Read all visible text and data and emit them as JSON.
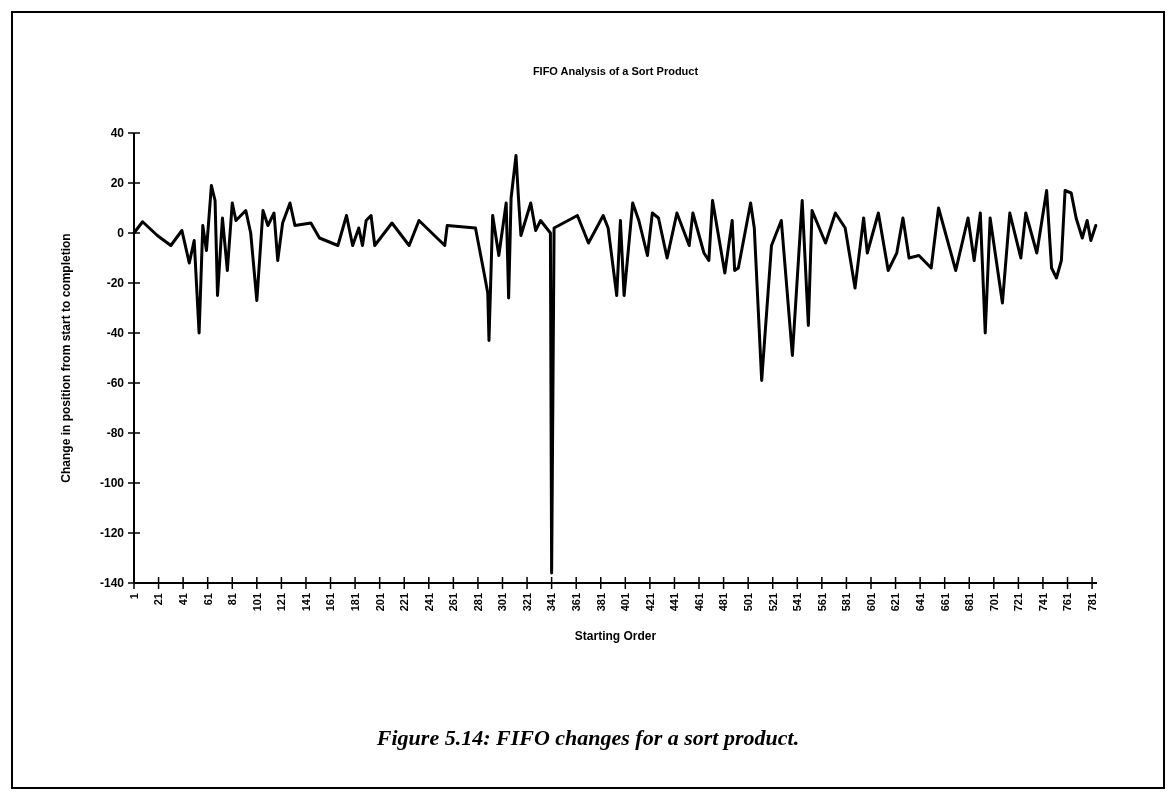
{
  "chart_data": {
    "type": "line",
    "title": "FIFO Analysis of a Sort Product",
    "xlabel": "Starting Order",
    "ylabel": "Change in position from start to completion",
    "annotations": [
      "Figure 5.14: FIFO changes for a sort product."
    ],
    "x": [
      1,
      8,
      20,
      31,
      40,
      46,
      50,
      54,
      57,
      60,
      64,
      67,
      69,
      73,
      77,
      81,
      84,
      92,
      96,
      101,
      106,
      110,
      115,
      118,
      122,
      128,
      132,
      145,
      152,
      167,
      174,
      179,
      184,
      187,
      190,
      194,
      197,
      211,
      225,
      233,
      254,
      256,
      279,
      286,
      289,
      290,
      293,
      298,
      304,
      306,
      308,
      312,
      314,
      316,
      324,
      328,
      332,
      340,
      341,
      343,
      362,
      371,
      383,
      387,
      394,
      397,
      400,
      407,
      412,
      419,
      423,
      428,
      435,
      443,
      453,
      456,
      465,
      469,
      472,
      482,
      488,
      490,
      493,
      503,
      506,
      512,
      520,
      528,
      537,
      545,
      550,
      553,
      564,
      572,
      580,
      588,
      595,
      598,
      607,
      615,
      622,
      627,
      632,
      640,
      650,
      656,
      670,
      680,
      685,
      690,
      694,
      698,
      708,
      714,
      723,
      727,
      736,
      744,
      748,
      752,
      756,
      759,
      764,
      768,
      773,
      777,
      780,
      784
    ],
    "series": [
      {
        "color": "#000000",
        "values": [
          0,
          4.5,
          -1,
          -5,
          1,
          -12,
          -3,
          -40,
          3,
          -7,
          19,
          13,
          -25,
          6,
          -15,
          12,
          5,
          9,
          0,
          -27,
          9,
          3,
          8,
          -11,
          4,
          12,
          3,
          4,
          -2,
          -5,
          7,
          -5,
          2,
          -5,
          5,
          7,
          -5,
          4,
          -5,
          5,
          -5,
          3,
          2,
          -16,
          -24,
          -43,
          7,
          -9,
          12,
          -26,
          14,
          31,
          14,
          -1,
          12,
          1,
          5,
          0,
          -136,
          2,
          7,
          -4,
          7,
          2,
          -25,
          5,
          -25,
          12,
          5,
          -9,
          8,
          6,
          -10,
          8,
          -5,
          8,
          -8,
          -11,
          13,
          -16,
          5,
          -15,
          -14,
          12,
          2,
          -59,
          -5,
          5,
          -49,
          13,
          -37,
          9,
          -4,
          8,
          2,
          -22,
          6,
          -8,
          8,
          -15,
          -8,
          6,
          -10,
          -9,
          -14,
          10,
          -15,
          6,
          -11,
          8,
          -40,
          6,
          -28,
          8,
          -10,
          8,
          -8,
          17,
          -14,
          -18,
          -11,
          17,
          16,
          6,
          -2,
          5,
          -3,
          3
        ]
      }
    ],
    "xlim": [
      1,
      785
    ],
    "xticks": [
      1,
      21,
      41,
      61,
      81,
      101,
      121,
      141,
      161,
      181,
      201,
      221,
      241,
      261,
      281,
      301,
      321,
      341,
      361,
      381,
      401,
      421,
      441,
      461,
      481,
      501,
      521,
      541,
      561,
      581,
      601,
      621,
      641,
      661,
      681,
      701,
      721,
      741,
      761,
      781
    ],
    "ylim": [
      -140,
      40
    ],
    "yticks": [
      -140,
      -120,
      -100,
      -80,
      -60,
      -40,
      -20,
      0,
      20,
      40
    ],
    "grid": false,
    "line_style": "solid",
    "marker": "none"
  }
}
